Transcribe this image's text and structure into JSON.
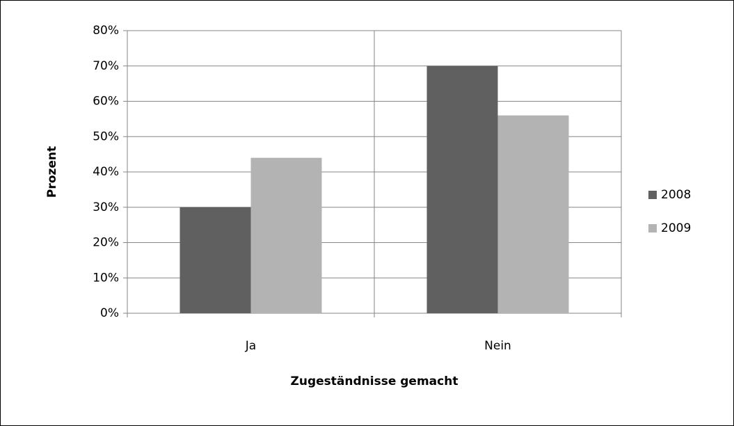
{
  "chart_data": {
    "type": "bar",
    "categories": [
      "Ja",
      "Nein"
    ],
    "series": [
      {
        "name": "2008",
        "color": "#606060",
        "values": [
          30,
          70
        ]
      },
      {
        "name": "2009",
        "color": "#b3b3b3",
        "values": [
          44,
          56
        ]
      }
    ],
    "ylim": [
      0,
      80
    ],
    "yticks": [
      {
        "value": 0,
        "label": "0%"
      },
      {
        "value": 10,
        "label": "10%"
      },
      {
        "value": 20,
        "label": "20%"
      },
      {
        "value": 30,
        "label": "30%"
      },
      {
        "value": 40,
        "label": "40%"
      },
      {
        "value": 50,
        "label": "50%"
      },
      {
        "value": 60,
        "label": "60%"
      },
      {
        "value": 70,
        "label": "70%"
      },
      {
        "value": 80,
        "label": "80%"
      }
    ],
    "ylabel": "Prozent",
    "xlabel": "Zugeständnisse gemacht",
    "grid": true,
    "legend": "right"
  }
}
